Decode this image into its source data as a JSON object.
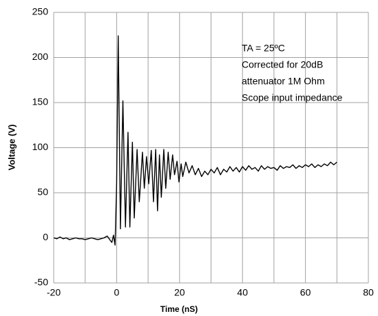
{
  "chart_data": {
    "type": "line",
    "x_label": "Time (nS)",
    "y_label": "Voltage (V)",
    "annotations": [
      "TA = 25ºC",
      "Corrected for 20dB",
      "attenuator 1M Ohm",
      "Scope input impedance"
    ],
    "xlim": [
      -20,
      80
    ],
    "ylim": [
      -50,
      250
    ],
    "xticks": [
      -20,
      0,
      20,
      40,
      60,
      80
    ],
    "x_minor_ticks": [
      -10,
      10,
      30,
      50,
      70
    ],
    "yticks": [
      -50,
      0,
      50,
      100,
      150,
      200,
      250
    ],
    "grid": true,
    "color": "#000000",
    "x": [
      -20,
      -19,
      -18,
      -17,
      -16,
      -15,
      -14,
      -13,
      -12,
      -11,
      -10,
      -9,
      -8,
      -7,
      -6,
      -5,
      -4,
      -3,
      -2,
      -1.5,
      -1,
      -0.5,
      0,
      0.5,
      1.2,
      2,
      2.8,
      3.6,
      4.2,
      5,
      5.6,
      6.5,
      7.2,
      8.2,
      8.8,
      9.5,
      10.2,
      11,
      11.7,
      12.4,
      13,
      13.6,
      14.2,
      15,
      15.6,
      16.4,
      17,
      17.8,
      18.4,
      19.2,
      19.8,
      20.5,
      21,
      22,
      23,
      24,
      25,
      26,
      27,
      28,
      29,
      30,
      31,
      32,
      33,
      34,
      35,
      36,
      37,
      38,
      39,
      40,
      41,
      42,
      43,
      44,
      45,
      46,
      47,
      48,
      49,
      50,
      51,
      52,
      53,
      54,
      55,
      56,
      57,
      58,
      59,
      60,
      61,
      62,
      63,
      64,
      65,
      66,
      67,
      68,
      69,
      70
    ],
    "values": [
      0,
      -1,
      1,
      -1,
      0,
      -2,
      -1,
      0,
      -1,
      -1,
      -2,
      -1,
      0,
      -1,
      -2,
      -1,
      0,
      2,
      -3,
      -5,
      3,
      -8,
      60,
      224,
      10,
      152,
      12,
      117,
      12,
      106,
      22,
      98,
      40,
      95,
      55,
      90,
      60,
      97,
      40,
      98,
      30,
      92,
      45,
      98,
      55,
      95,
      65,
      92,
      70,
      85,
      62,
      82,
      68,
      84,
      72,
      80,
      70,
      77,
      68,
      74,
      70,
      76,
      72,
      78,
      70,
      76,
      73,
      79,
      74,
      78,
      73,
      79,
      75,
      80,
      76,
      78,
      74,
      80,
      76,
      79,
      77,
      78,
      75,
      80,
      77,
      79,
      78,
      81,
      77,
      80,
      78,
      81,
      79,
      82,
      78,
      81,
      79,
      82,
      80,
      84,
      81,
      84
    ]
  }
}
